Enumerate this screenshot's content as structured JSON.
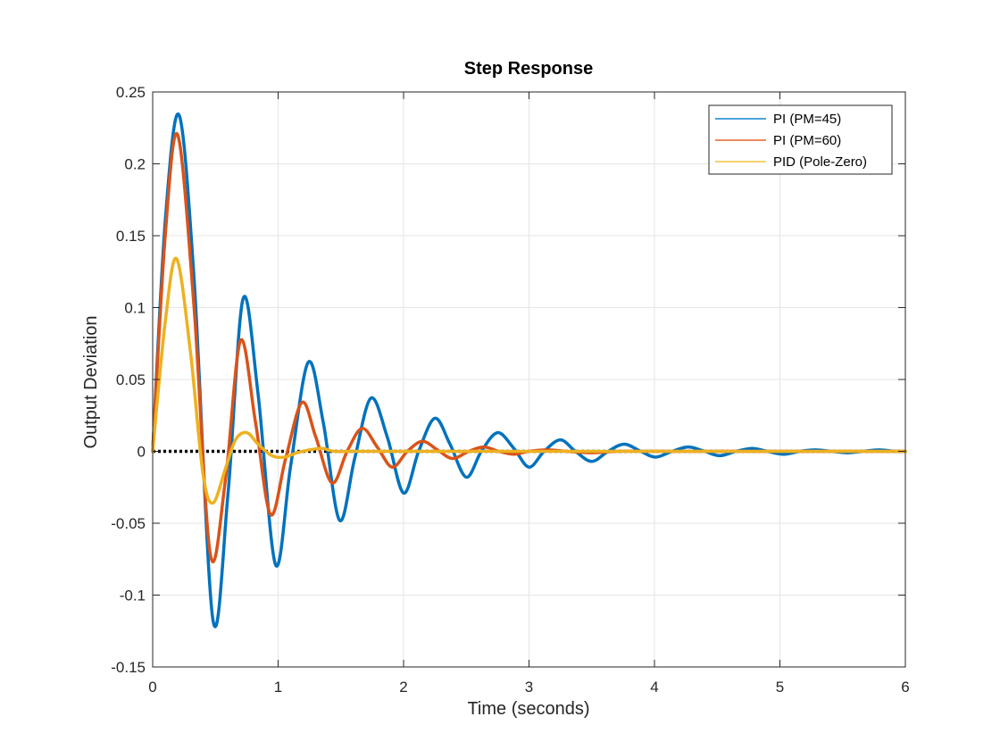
{
  "chart_data": {
    "type": "line",
    "title": "Step Response",
    "xlabel": "Time (seconds)",
    "ylabel": "Output Deviation",
    "xlim": [
      0,
      6
    ],
    "ylim": [
      -0.15,
      0.25
    ],
    "grid": true,
    "legend_position": "top-right",
    "x_ticks": [
      "0",
      "1",
      "2",
      "3",
      "4",
      "5",
      "6"
    ],
    "y_ticks": [
      "-0.15",
      "-0.1",
      "-0.05",
      "0",
      "0.05",
      "0.1",
      "0.15",
      "0.2",
      "0.25"
    ],
    "reference_line": {
      "y": 0,
      "style": "dotted",
      "color": "#000000"
    },
    "series": [
      {
        "name": "PI (PM=45)",
        "color": "#0072BD",
        "legend_color": "#4DA3D9",
        "x": [
          0,
          0.1,
          0.21,
          0.33,
          0.48,
          0.6,
          0.72,
          0.84,
          0.98,
          1.1,
          1.24,
          1.36,
          1.49,
          1.61,
          1.74,
          1.87,
          2.0,
          2.12,
          2.25,
          2.37,
          2.5,
          2.62,
          2.75,
          2.88,
          3.0,
          3.12,
          3.25,
          3.37,
          3.5,
          3.63,
          3.76,
          3.89,
          4.01,
          4.14,
          4.27,
          4.4,
          4.52,
          4.65,
          4.78,
          4.9,
          5.03,
          5.16,
          5.28,
          5.41,
          5.54,
          5.66,
          5.79,
          5.92,
          6.0
        ],
        "y": [
          0,
          0.16,
          0.234,
          0.12,
          -0.117,
          -0.03,
          0.106,
          0.04,
          -0.079,
          -0.01,
          0.062,
          0.02,
          -0.048,
          -0.005,
          0.037,
          0.01,
          -0.029,
          0.0,
          0.023,
          0.005,
          -0.018,
          0.0,
          0.013,
          0.002,
          -0.011,
          0.0,
          0.008,
          0.0,
          -0.007,
          0.0,
          0.005,
          0.0,
          -0.004,
          0.0,
          0.003,
          0.0,
          -0.003,
          0.0,
          0.002,
          0.0,
          -0.002,
          0.0,
          0.001,
          0.0,
          -0.001,
          0.0,
          0.001,
          0.0,
          0.0
        ]
      },
      {
        "name": "PI (PM=60)",
        "color": "#D95319",
        "legend_color": "#EC8A60",
        "x": [
          0,
          0.1,
          0.2,
          0.33,
          0.46,
          0.58,
          0.7,
          0.82,
          0.94,
          1.06,
          1.19,
          1.3,
          1.43,
          1.55,
          1.67,
          1.79,
          1.91,
          2.03,
          2.15,
          2.27,
          2.39,
          2.52,
          2.64,
          2.76,
          2.88,
          3.0,
          3.15,
          3.3,
          3.5,
          3.7,
          3.9,
          4.2,
          4.5,
          5.0,
          5.5,
          6.0
        ],
        "y": [
          0,
          0.15,
          0.22,
          0.1,
          -0.072,
          -0.02,
          0.077,
          0.02,
          -0.044,
          -0.005,
          0.034,
          0.01,
          -0.022,
          0.0,
          0.016,
          0.003,
          -0.011,
          0.0,
          0.007,
          0.001,
          -0.005,
          0.0,
          0.003,
          0.0,
          -0.002,
          0.0,
          0.001,
          0.0,
          -0.001,
          0.0,
          0.0,
          0.0,
          0.0,
          0.0,
          0.0,
          0.0
        ]
      },
      {
        "name": "PID (Pole-Zero)",
        "color": "#EDB120",
        "legend_color": "#F2D36A",
        "x": [
          0,
          0.1,
          0.19,
          0.3,
          0.4,
          0.48,
          0.58,
          0.66,
          0.75,
          0.84,
          0.95,
          1.05,
          1.15,
          1.25,
          1.35,
          1.45,
          1.6,
          1.8,
          2.0,
          2.5,
          3.0,
          4.0,
          5.0,
          6.0
        ],
        "y": [
          0,
          0.09,
          0.134,
          0.07,
          -0.015,
          -0.036,
          -0.012,
          0.008,
          0.013,
          0.005,
          -0.003,
          -0.004,
          -0.001,
          0.001,
          0.002,
          0.0,
          0.0,
          0.0,
          0.0,
          0.0,
          0.0,
          0.0,
          0.0,
          0.0
        ]
      }
    ]
  }
}
